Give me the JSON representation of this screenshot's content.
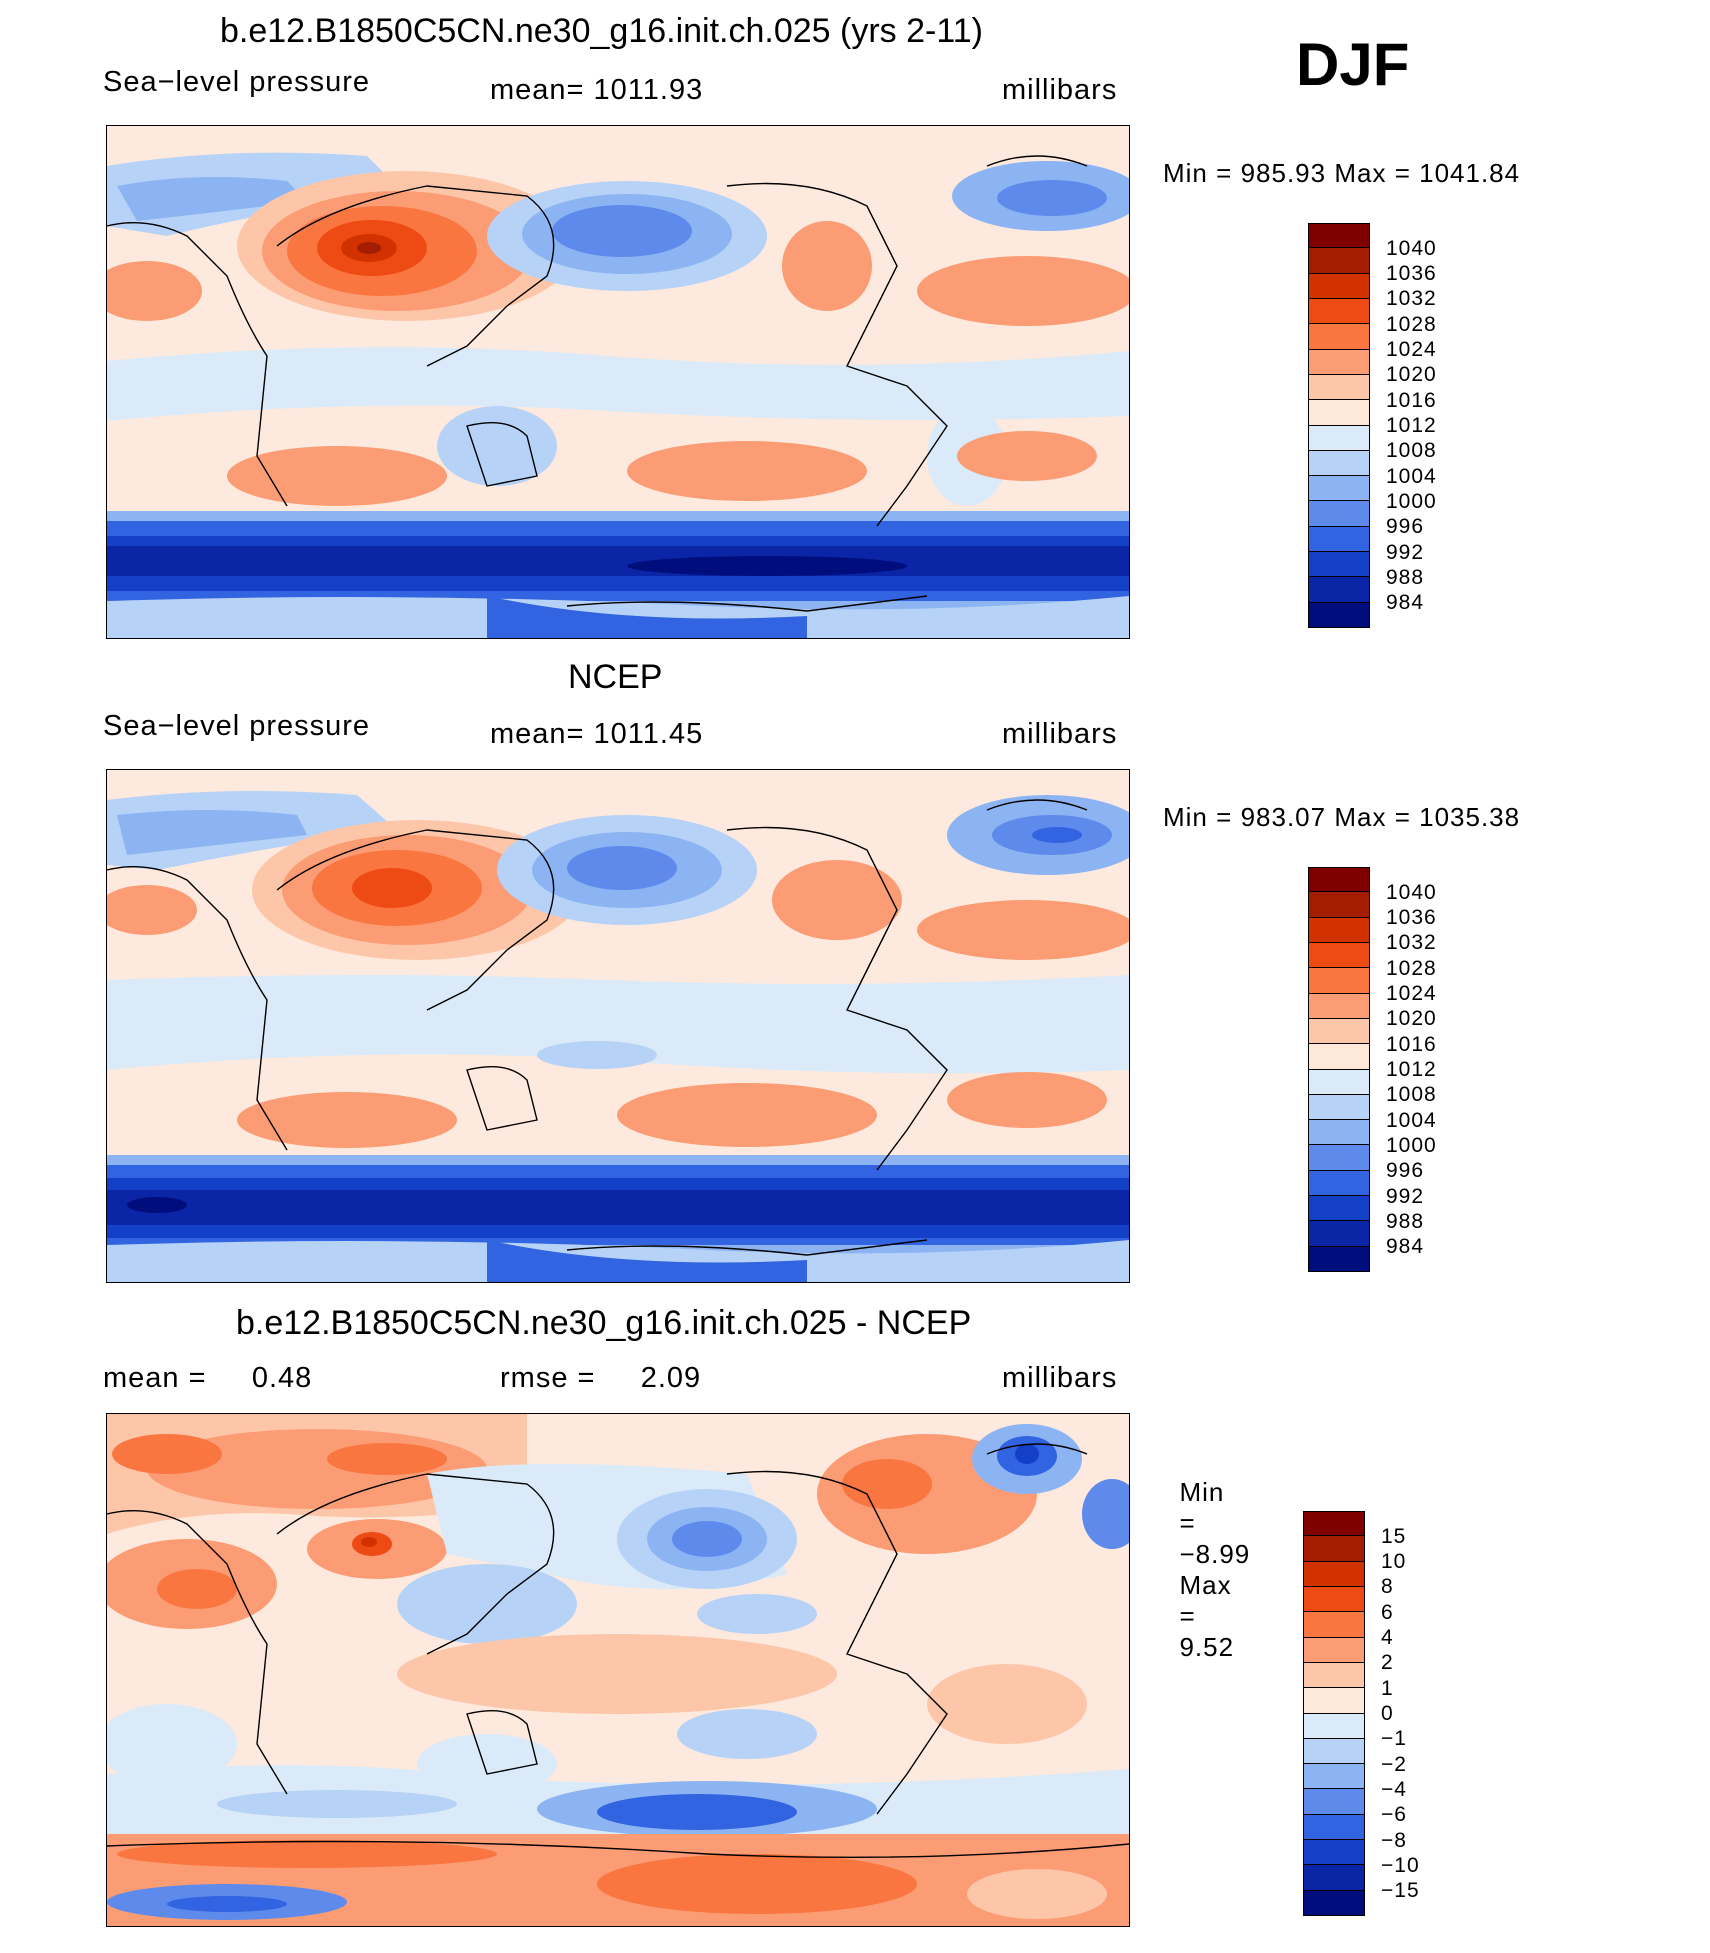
{
  "season": "DJF",
  "panels": [
    {
      "title": "b.e12.B1850C5CN.ne30_g16.init.ch.025 (yrs 2-11)",
      "left_label": "Sea−level pressure",
      "center_label": "mean=  1011.93",
      "right_label": "millibars",
      "min_label": "Min",
      "min_value": "985.93",
      "max_label": "Max",
      "max_value": "1041.84",
      "eq": "="
    },
    {
      "title": "NCEP",
      "left_label": "Sea−level pressure",
      "center_label": "mean=  1011.45",
      "right_label": "millibars",
      "min_label": "Min",
      "min_value": "983.07",
      "max_label": "Max",
      "max_value": "1035.38",
      "eq": "="
    },
    {
      "title": "b.e12.B1850C5CN.ne30_g16.init.ch.025 - NCEP",
      "left_label": "mean =     0.48",
      "center_label": "rmse =     2.09",
      "right_label": "millibars",
      "min_label": "Min",
      "min_value": "−8.99",
      "max_label": "Max",
      "max_value": "9.52",
      "eq": "="
    }
  ],
  "colorbars": {
    "absolute": {
      "labels": [
        "1040",
        "1036",
        "1032",
        "1028",
        "1024",
        "1020",
        "1016",
        "1012",
        "1008",
        "1004",
        "1000",
        "996",
        "992",
        "988",
        "984"
      ],
      "colors": [
        "#800000",
        "#a51d00",
        "#d23200",
        "#ee4a14",
        "#f97640",
        "#fc9c74",
        "#fdc6a8",
        "#fee9d8",
        "#daeaf8",
        "#b6d2f6",
        "#8cb4f2",
        "#5e8aeb",
        "#3263e0",
        "#1440c8",
        "#0a25a5",
        "#000e7d"
      ]
    },
    "difference": {
      "labels": [
        "15",
        "10",
        "8",
        "6",
        "4",
        "2",
        "1",
        "0",
        "−1",
        "−2",
        "−4",
        "−6",
        "−8",
        "−10",
        "−15"
      ],
      "colors": [
        "#800000",
        "#a51d00",
        "#d23200",
        "#ee4a14",
        "#f97640",
        "#fc9c74",
        "#fdc6a8",
        "#fee9d8",
        "#daeaf8",
        "#b6d2f6",
        "#8cb4f2",
        "#5e8aeb",
        "#3263e0",
        "#1440c8",
        "#0a25a5",
        "#000e7d"
      ]
    }
  },
  "chart_data": {
    "type": "heatmap",
    "variable": "Sea-level pressure",
    "units": "millibars",
    "season": "DJF",
    "panels": [
      {
        "name": "b.e12.B1850C5CN.ne30_g16.init.ch.025 (yrs 2-11)",
        "mean": 1011.93,
        "min": 985.93,
        "max": 1041.84,
        "levels": [
          984,
          988,
          992,
          996,
          1000,
          1004,
          1008,
          1012,
          1016,
          1020,
          1024,
          1028,
          1032,
          1036,
          1040
        ]
      },
      {
        "name": "NCEP",
        "mean": 1011.45,
        "min": 983.07,
        "max": 1035.38,
        "levels": [
          984,
          988,
          992,
          996,
          1000,
          1004,
          1008,
          1012,
          1016,
          1020,
          1024,
          1028,
          1032,
          1036,
          1040
        ]
      },
      {
        "name": "b.e12.B1850C5CN.ne30_g16.init.ch.025 - NCEP",
        "mean": 0.48,
        "rmse": 2.09,
        "min": -8.99,
        "max": 9.52,
        "levels": [
          -15,
          -10,
          -8,
          -6,
          -4,
          -2,
          -1,
          0,
          1,
          2,
          4,
          6,
          8,
          10,
          15
        ]
      }
    ]
  }
}
